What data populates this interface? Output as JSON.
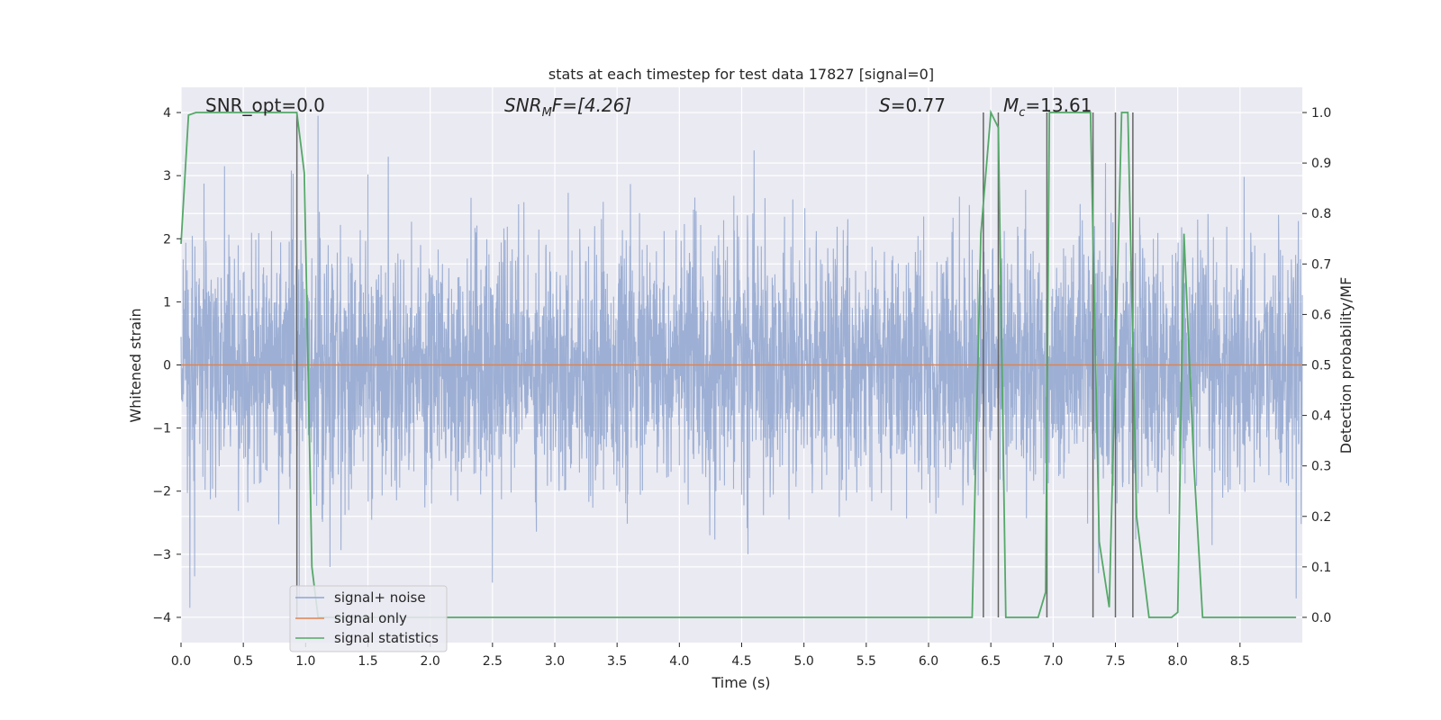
{
  "chart_data": {
    "type": "line",
    "title": "stats at each timestep for test data 17827 [signal=0]",
    "xlabel": "Time (s)",
    "ylabel": "Whitened strain",
    "y2label": "Detection probability/MF",
    "xlim": [
      0.0,
      9.0
    ],
    "ylim": [
      -4.4,
      4.4
    ],
    "y2lim": [
      -0.05,
      1.05
    ],
    "xticks": [
      "0.0",
      "0.5",
      "1.0",
      "1.5",
      "2.0",
      "2.5",
      "3.0",
      "3.5",
      "4.0",
      "4.5",
      "5.0",
      "5.5",
      "6.0",
      "6.5",
      "7.0",
      "7.5",
      "8.0",
      "8.5"
    ],
    "yticks": [
      "−4",
      "−3",
      "−2",
      "−1",
      "0",
      "1",
      "2",
      "3",
      "4"
    ],
    "y2ticks": [
      "0.0",
      "0.1",
      "0.2",
      "0.3",
      "0.4",
      "0.5",
      "0.6",
      "0.7",
      "0.8",
      "0.9",
      "1.0"
    ],
    "grid": true,
    "legend_position": "lower-left",
    "annotations": {
      "snr_opt": "SNR_opt=0.0",
      "snr_mf_main": "SNR",
      "snr_mf_sub": "M",
      "snr_mf_rest": "F=[4.26]",
      "s_main": "S",
      "s_rest": "=0.77",
      "mc_main": "M",
      "mc_sub": "c",
      "mc_rest": "=13.61"
    },
    "series": [
      {
        "name": "signal+ noise",
        "color": "#8fa5cf",
        "style": "noise strain, whitened; amplitude mostly within ±1.6 with spikes to about ±3.9",
        "envelope_y": [
          -1.6,
          1.6
        ],
        "peaks_approx": [
          {
            "x": 0.07,
            "y": -3.85
          },
          {
            "x": 0.11,
            "y": -3.35
          },
          {
            "x": 0.35,
            "y": 3.15
          },
          {
            "x": 0.95,
            "y": -3.7
          },
          {
            "x": 1.1,
            "y": 3.95
          },
          {
            "x": 2.5,
            "y": -3.45
          },
          {
            "x": 4.6,
            "y": 3.4
          },
          {
            "x": 4.55,
            "y": -3.0
          },
          {
            "x": 7.42,
            "y": 3.2
          },
          {
            "x": 8.95,
            "y": -3.7
          }
        ]
      },
      {
        "name": "signal only",
        "color": "#dd8452",
        "x": [
          0.0,
          9.0
        ],
        "y": [
          0.0,
          0.0
        ]
      },
      {
        "name": "signal statistics",
        "color": "#55a868",
        "axis": "right",
        "x": [
          0.0,
          0.06,
          0.12,
          0.2,
          0.5,
          0.93,
          0.99,
          1.05,
          1.1,
          1.2,
          6.35,
          6.42,
          6.5,
          6.56,
          6.62,
          6.88,
          6.94,
          6.97,
          7.05,
          7.3,
          7.37,
          7.45,
          7.55,
          7.6,
          7.67,
          7.77,
          7.95,
          8.0,
          8.05,
          8.13,
          8.2,
          8.95
        ],
        "y": [
          0.74,
          0.995,
          1.0,
          1.0,
          1.0,
          1.0,
          0.88,
          0.1,
          0.0,
          0.0,
          0.0,
          0.76,
          1.0,
          0.97,
          0.0,
          0.0,
          0.05,
          1.0,
          1.0,
          1.0,
          0.15,
          0.02,
          1.0,
          1.0,
          0.2,
          0.0,
          0.0,
          0.01,
          0.76,
          0.3,
          0.0,
          0.0
        ]
      }
    ],
    "event_markers": {
      "color": "#666666",
      "axis": "right",
      "x": [
        0.93,
        6.44,
        6.56,
        6.95,
        7.32,
        7.5,
        7.64
      ],
      "y_range": [
        0.0,
        1.0
      ]
    }
  }
}
